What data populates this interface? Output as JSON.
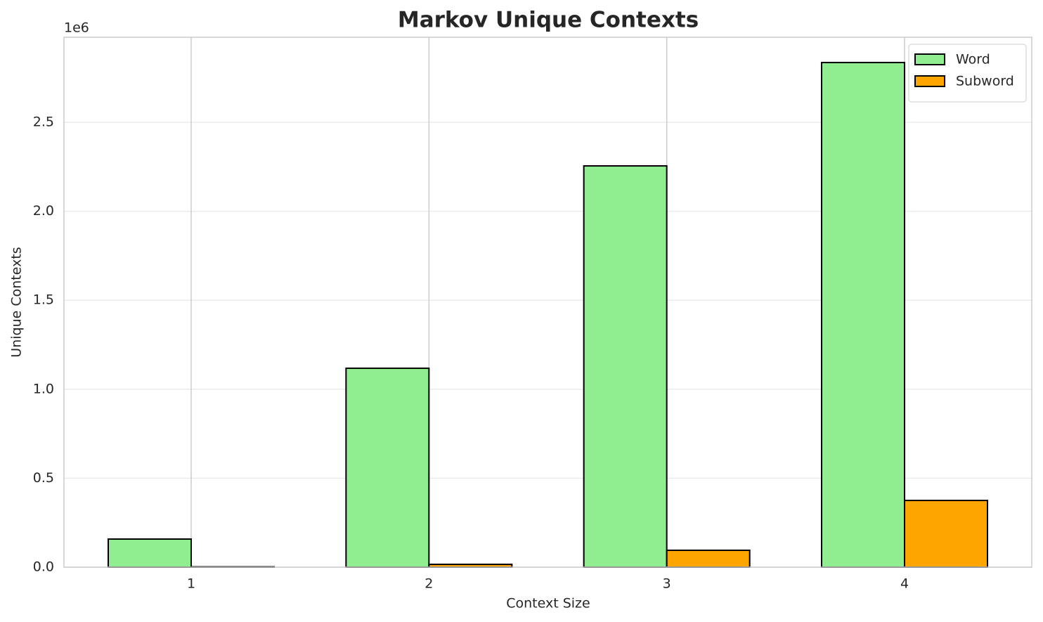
{
  "chart_data": {
    "type": "bar",
    "title": "Markov Unique Contexts",
    "x_label": "Context Size",
    "y_label": "Unique Contexts",
    "y_offset_label": "1e6",
    "categories": [
      "1",
      "2",
      "3",
      "4"
    ],
    "series": [
      {
        "name": "Word",
        "color": "#90ee90",
        "values": [
          158000,
          1118000,
          2255000,
          2836000
        ]
      },
      {
        "name": "Subword",
        "color": "#ffa500",
        "values": [
          2000,
          16000,
          95000,
          375000
        ]
      }
    ],
    "ylim": [
      0,
      2978000
    ],
    "yticks": [
      {
        "value": 0,
        "label": "0.0"
      },
      {
        "value": 500000,
        "label": "0.5"
      },
      {
        "value": 1000000,
        "label": "1.0"
      },
      {
        "value": 1500000,
        "label": "1.5"
      },
      {
        "value": 2000000,
        "label": "2.0"
      },
      {
        "value": 2500000,
        "label": "2.5"
      }
    ],
    "grid": true,
    "legend": "upper right"
  }
}
